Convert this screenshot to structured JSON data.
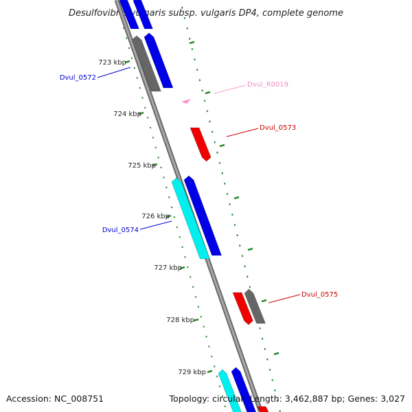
{
  "title": "Desulfovibrio vulgaris subsp. vulgaris DP4, complete genome",
  "footer": {
    "accession": "Accession: NC_008751",
    "summary": "Topology: circular; Length: 3,462,887 bp; Genes: 3,027"
  },
  "colors": {
    "blue": "#0000e6",
    "gray": "#666666",
    "cyan": "#00f0f0",
    "red": "#ee0000",
    "pink": "#ff8cc8",
    "tick": "#2a8a2a",
    "backbone": "#808080"
  },
  "ticks": [
    "723 kbp",
    "724 kbp",
    "725 kbp",
    "726 kbp",
    "727 kbp",
    "728 kbp",
    "729 kbp"
  ],
  "gene_labels": {
    "g0572": "Dvul_0572",
    "r0019": "Dvul_R0019",
    "g0573": "Dvul_0573",
    "g0574": "Dvul_0574",
    "g0575": "Dvul_0575"
  }
}
